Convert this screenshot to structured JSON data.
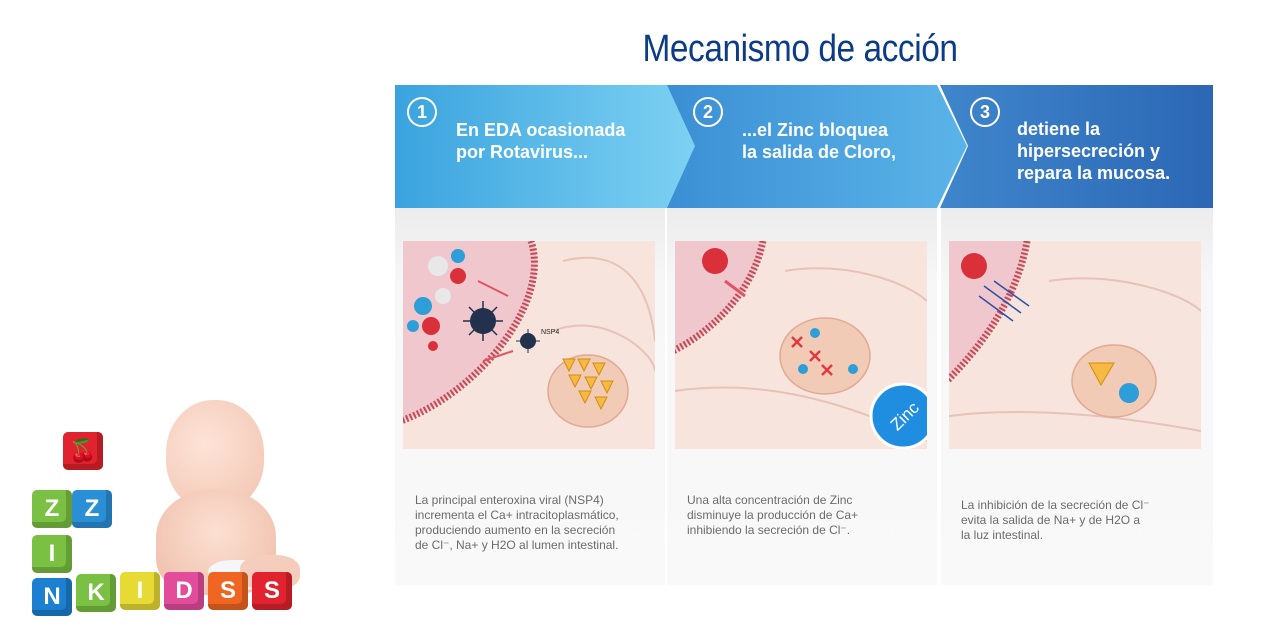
{
  "title": "Mecanismo de acción",
  "steps": [
    {
      "number": "1",
      "heading_line1": "En EDA ocasionada",
      "heading_line2": "por Rotavirus...",
      "illustration_labels": {
        "nsp": "NSP4"
      },
      "desc_lines": [
        "La principal enteroxina viral (NSP4)",
        "incrementa el Ca+ intracitoplasmático,",
        "produciendo aumento en la secreción",
        "de Cl⁻, Na+ y H2O al lumen intestinal."
      ]
    },
    {
      "number": "2",
      "heading_line1": "...el Zinc bloquea",
      "heading_line2": "la salida de Cloro,",
      "illustration_labels": {
        "zinc": "Zinc"
      },
      "desc_lines": [
        "Una alta concentración de Zinc",
        "disminuye la producción de Ca+",
        "inhibiendo la secreción de Cl⁻."
      ]
    },
    {
      "number": "3",
      "heading_line1": "detiene la",
      "heading_line2": "hipersecreción y",
      "heading_line3": "repara la mucosa.",
      "desc_lines": [
        "La inhibición de la secreción de Cl⁻",
        "evita la salida de Na+ y de H2O a",
        "la luz intestinal."
      ]
    }
  ],
  "logo": {
    "letters_top": [
      "Z",
      "Z"
    ],
    "letter_mid": "I",
    "letters_bottom": [
      "N",
      "K",
      "I",
      "D",
      "S"
    ]
  },
  "colors": {
    "title": "#0c3b88",
    "banner1": "#5cc0ec",
    "banner2": "#4aa2e0",
    "banner3": "#3573c0",
    "tissue": "#f3d9d3",
    "cell": "#f6e6df"
  }
}
